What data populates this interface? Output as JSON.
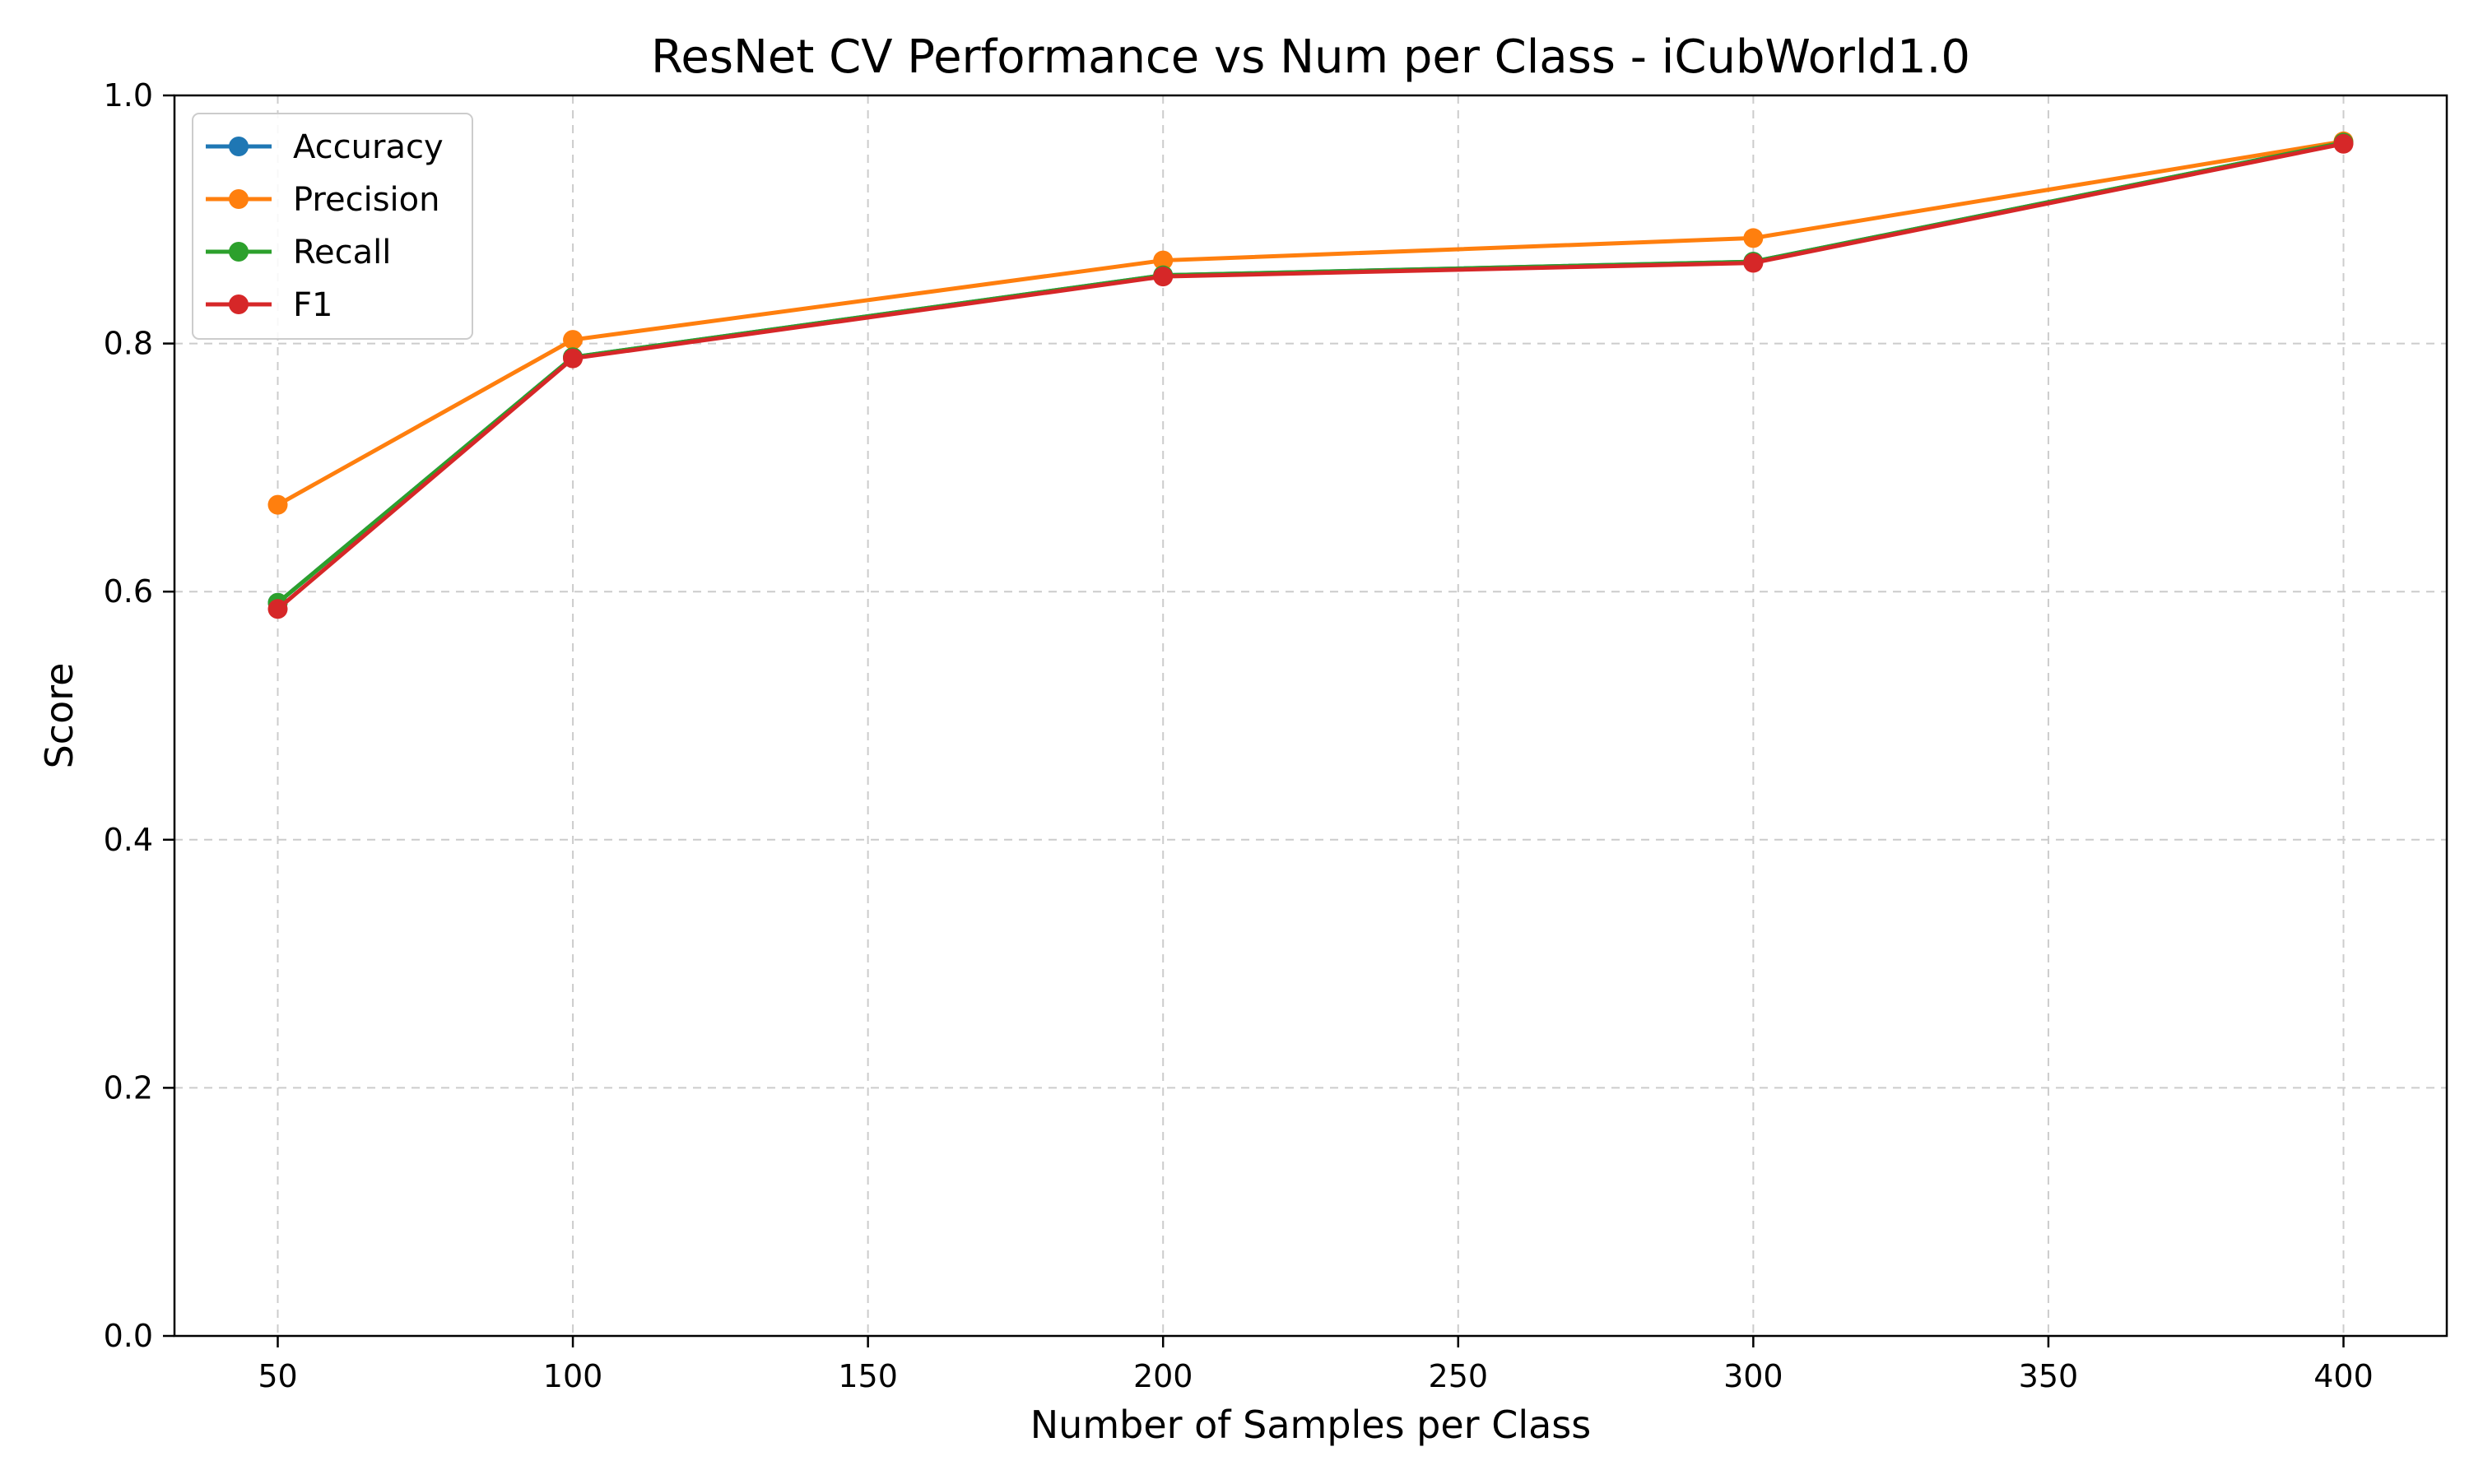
{
  "chart_data": {
    "type": "line",
    "title": "ResNet CV Performance vs Num per Class - iCubWorld1.0",
    "xlabel": "Number of Samples per Class",
    "ylabel": "Score",
    "x": [
      50,
      100,
      200,
      300,
      400
    ],
    "xlim": [
      32.5,
      417.5
    ],
    "ylim": [
      0.0,
      1.0
    ],
    "xticks": [
      "50",
      "100",
      "150",
      "200",
      "250",
      "300",
      "350",
      "400"
    ],
    "yticks": [
      "0.0",
      "0.2",
      "0.4",
      "0.6",
      "0.8",
      "1.0"
    ],
    "grid": true,
    "legend_position": "top-left",
    "series": [
      {
        "name": "Accuracy",
        "color": "#1f77b4",
        "values": [
          0.591,
          0.789,
          0.855,
          0.866,
          0.962
        ]
      },
      {
        "name": "Precision",
        "color": "#ff7f0e",
        "values": [
          0.67,
          0.803,
          0.867,
          0.885,
          0.963
        ]
      },
      {
        "name": "Recall",
        "color": "#2ca02c",
        "values": [
          0.591,
          0.789,
          0.855,
          0.866,
          0.962
        ]
      },
      {
        "name": "F1",
        "color": "#d62728",
        "values": [
          0.586,
          0.788,
          0.854,
          0.865,
          0.961
        ]
      }
    ]
  }
}
